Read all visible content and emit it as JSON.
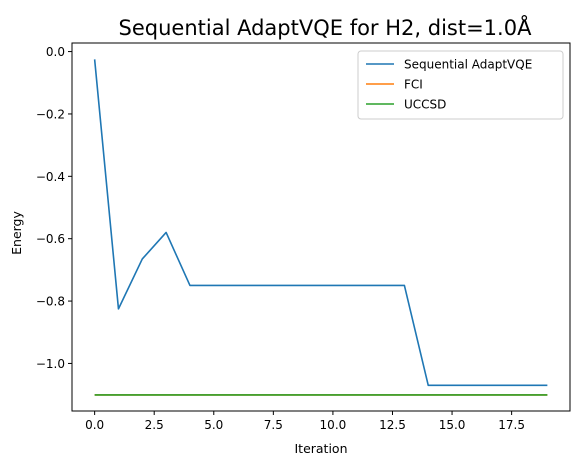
{
  "chart_data": {
    "type": "line",
    "title": "Sequential AdaptVQE for H2, dist=1.0Å",
    "xlabel": "Iteration",
    "ylabel": "Energy",
    "xlim": [
      -0.95,
      19.95
    ],
    "ylim": [
      -1.1525,
      0.0275
    ],
    "xticks": [
      0.0,
      2.5,
      5.0,
      7.5,
      10.0,
      12.5,
      15.0,
      17.5
    ],
    "xtick_labels": [
      "0.0",
      "2.5",
      "5.0",
      "7.5",
      "10.0",
      "12.5",
      "15.0",
      "17.5"
    ],
    "yticks": [
      0.0,
      -0.2,
      -0.4,
      -0.6,
      -0.8,
      -1.0
    ],
    "ytick_labels": [
      "0.0",
      "−0.2",
      "−0.4",
      "−0.6",
      "−0.8",
      "−1.0"
    ],
    "grid": false,
    "legend_position": "top-right",
    "x": [
      0,
      1,
      2,
      3,
      4,
      5,
      6,
      7,
      8,
      9,
      10,
      11,
      12,
      13,
      14,
      15,
      16,
      17,
      18,
      19
    ],
    "series": [
      {
        "name": "Sequential AdaptVQE",
        "color": "#1f77b4",
        "values": [
          -0.025,
          -0.825,
          -0.665,
          -0.58,
          -0.75,
          -0.75,
          -0.75,
          -0.75,
          -0.75,
          -0.75,
          -0.75,
          -0.75,
          -0.75,
          -0.75,
          -1.07,
          -1.07,
          -1.07,
          -1.07,
          -1.07,
          -1.07
        ]
      },
      {
        "name": "FCI",
        "color": "#ff7f0e",
        "values": [
          -1.101,
          -1.101,
          -1.101,
          -1.101,
          -1.101,
          -1.101,
          -1.101,
          -1.101,
          -1.101,
          -1.101,
          -1.101,
          -1.101,
          -1.101,
          -1.101,
          -1.101,
          -1.101,
          -1.101,
          -1.101,
          -1.101,
          -1.101
        ]
      },
      {
        "name": "UCCSD",
        "color": "#2ca02c",
        "values": [
          -1.101,
          -1.101,
          -1.101,
          -1.101,
          -1.101,
          -1.101,
          -1.101,
          -1.101,
          -1.101,
          -1.101,
          -1.101,
          -1.101,
          -1.101,
          -1.101,
          -1.101,
          -1.101,
          -1.101,
          -1.101,
          -1.101,
          -1.101
        ]
      }
    ]
  }
}
